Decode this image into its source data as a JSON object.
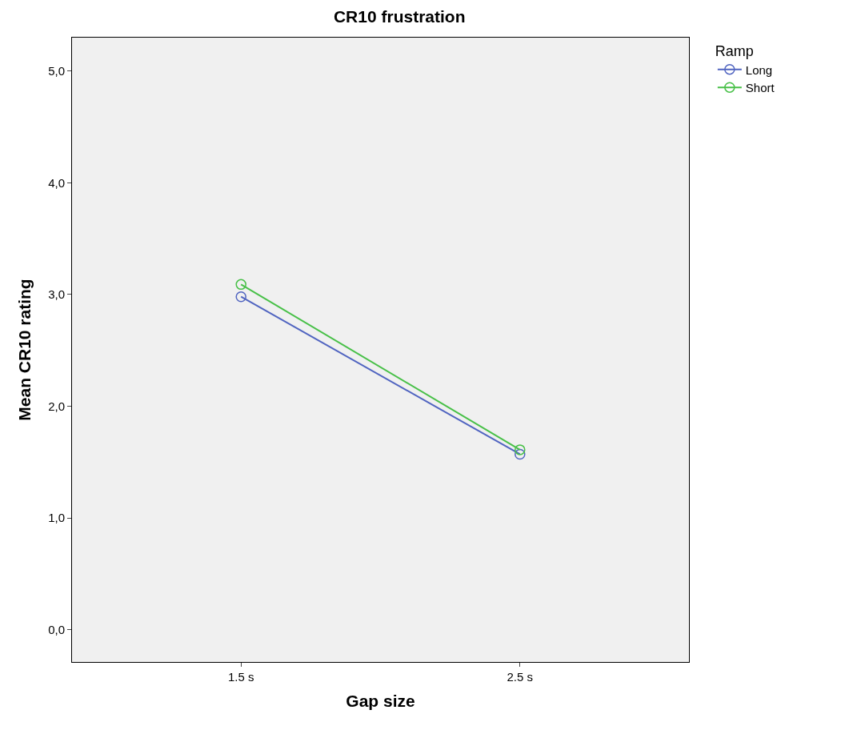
{
  "chart_data": {
    "type": "line",
    "title": "CR10 frustration",
    "xlabel": "Gap size",
    "ylabel": "Mean CR10 rating",
    "legend_title": "Ramp",
    "categories": [
      "1.5 s",
      "2.5 s"
    ],
    "series": [
      {
        "name": "Long",
        "color": "#5064c0",
        "values": [
          2.98,
          1.57
        ]
      },
      {
        "name": "Short",
        "color": "#48c048",
        "values": [
          3.09,
          1.61
        ]
      }
    ],
    "ylim": [
      -0.29,
      5.3
    ],
    "yticks": [
      {
        "value": 0,
        "label": "0,0"
      },
      {
        "value": 1,
        "label": "1,0"
      },
      {
        "value": 2,
        "label": "2,0"
      },
      {
        "value": 3,
        "label": "3,0"
      },
      {
        "value": 4,
        "label": "4,0"
      },
      {
        "value": 5,
        "label": "5,0"
      }
    ],
    "grid": false,
    "legend": "top right",
    "marker": "circle",
    "line_style": "solid"
  }
}
